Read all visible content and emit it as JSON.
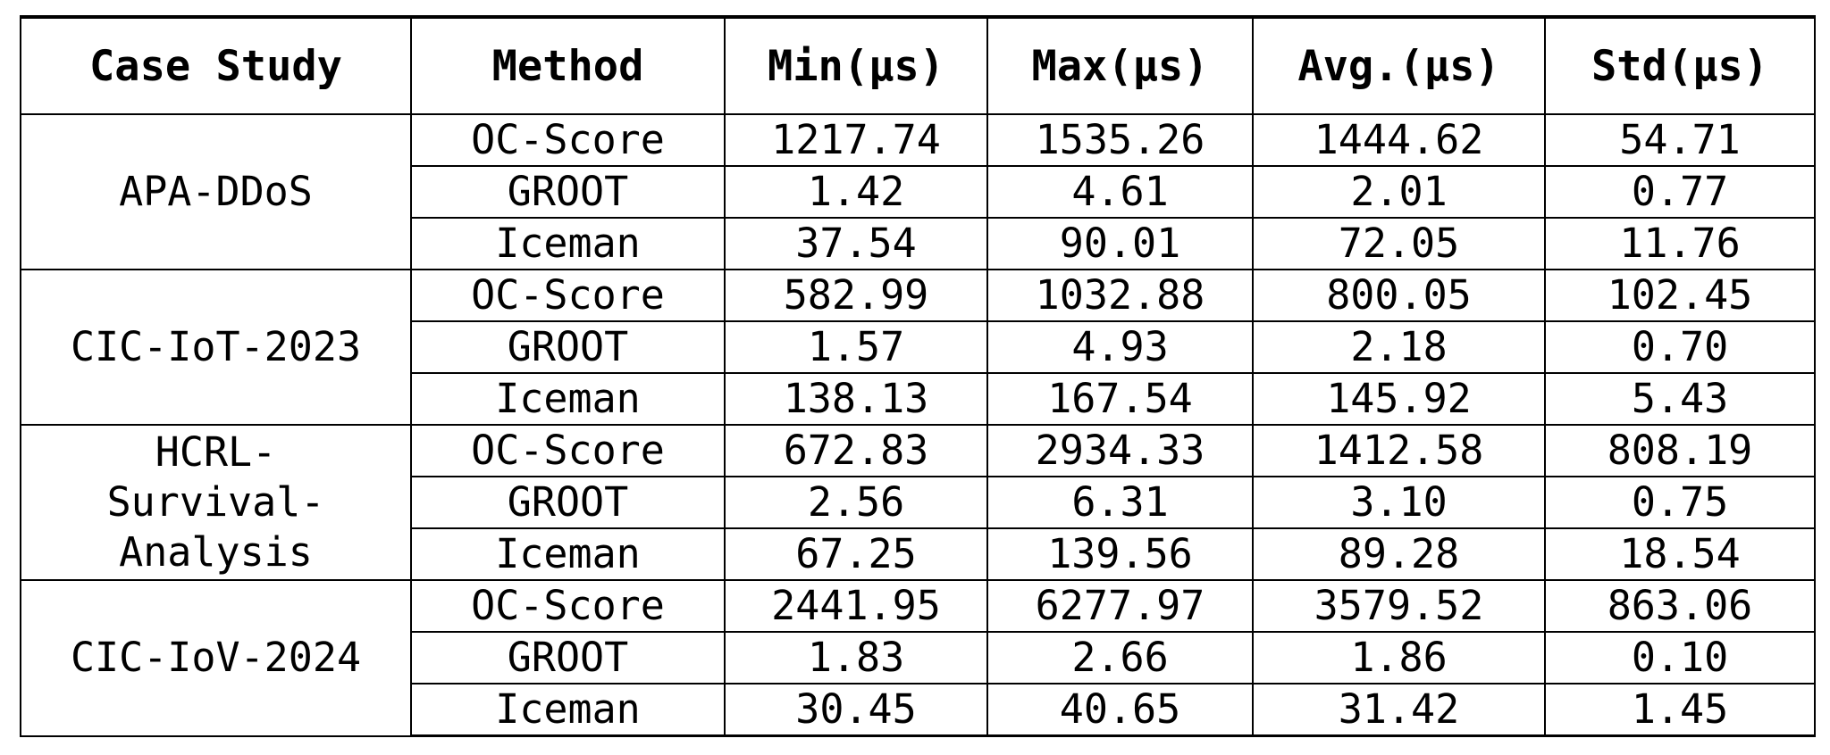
{
  "table": {
    "headers": [
      "Case Study",
      "Method",
      "Min(µs)",
      "Max(µs)",
      "Avg.(µs)",
      "Std(µs)"
    ],
    "groups": [
      {
        "case_lines": [
          "APA-DDoS"
        ],
        "rows": [
          {
            "method": "OC-Score",
            "min": "1217.74",
            "max": "1535.26",
            "avg": "1444.62",
            "std": "54.71"
          },
          {
            "method": "GROOT",
            "min": "1.42",
            "max": "4.61",
            "avg": "2.01",
            "std": "0.77"
          },
          {
            "method": "Iceman",
            "min": "37.54",
            "max": "90.01",
            "avg": "72.05",
            "std": "11.76"
          }
        ]
      },
      {
        "case_lines": [
          "CIC-IoT-2023"
        ],
        "rows": [
          {
            "method": "OC-Score",
            "min": "582.99",
            "max": "1032.88",
            "avg": "800.05",
            "std": "102.45"
          },
          {
            "method": "GROOT",
            "min": "1.57",
            "max": "4.93",
            "avg": "2.18",
            "std": "0.70"
          },
          {
            "method": "Iceman",
            "min": "138.13",
            "max": "167.54",
            "avg": "145.92",
            "std": "5.43"
          }
        ]
      },
      {
        "case_lines": [
          "HCRL-",
          "Survival-",
          "Analysis"
        ],
        "rows": [
          {
            "method": "OC-Score",
            "min": "672.83",
            "max": "2934.33",
            "avg": "1412.58",
            "std": "808.19"
          },
          {
            "method": "GROOT",
            "min": "2.56",
            "max": "6.31",
            "avg": "3.10",
            "std": "0.75"
          },
          {
            "method": "Iceman",
            "min": "67.25",
            "max": "139.56",
            "avg": "89.28",
            "std": "18.54"
          }
        ]
      },
      {
        "case_lines": [
          "CIC-IoV-2024"
        ],
        "rows": [
          {
            "method": "OC-Score",
            "min": "2441.95",
            "max": "6277.97",
            "avg": "3579.52",
            "std": "863.06"
          },
          {
            "method": "GROOT",
            "min": "1.83",
            "max": "2.66",
            "avg": "1.86",
            "std": "0.10"
          },
          {
            "method": "Iceman",
            "min": "30.45",
            "max": "40.65",
            "avg": "31.42",
            "std": "1.45"
          }
        ]
      }
    ]
  }
}
